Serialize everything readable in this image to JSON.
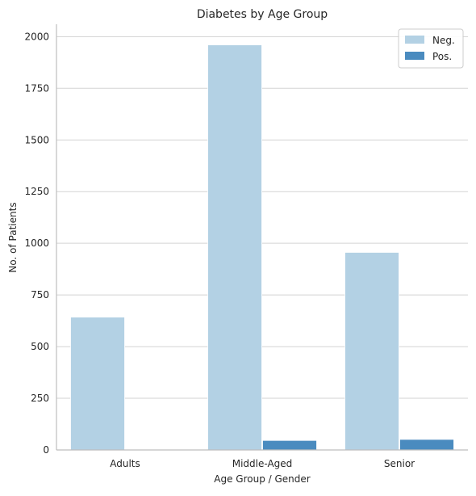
{
  "chart_data": {
    "type": "bar",
    "title": "Diabetes by Age Group",
    "xlabel": "Age Group / Gender",
    "ylabel": "No. of Patients",
    "categories": [
      "Adults",
      "Middle-Aged",
      "Senior"
    ],
    "series": [
      {
        "name": "Neg.",
        "values": [
          643,
          1960,
          956
        ],
        "color": "#b3d1e4"
      },
      {
        "name": "Pos.",
        "values": [
          0,
          46,
          51
        ],
        "color": "#4a8bbf"
      }
    ],
    "ylim": [
      0,
      2060
    ],
    "yticks": [
      0,
      250,
      500,
      750,
      1000,
      1250,
      1500,
      1750,
      2000
    ],
    "grid": "horizontal",
    "legend_position": "top-right",
    "colors": {
      "grid": "#d3d3d3",
      "axis": "#bdbdbd",
      "text": "#262626"
    }
  }
}
